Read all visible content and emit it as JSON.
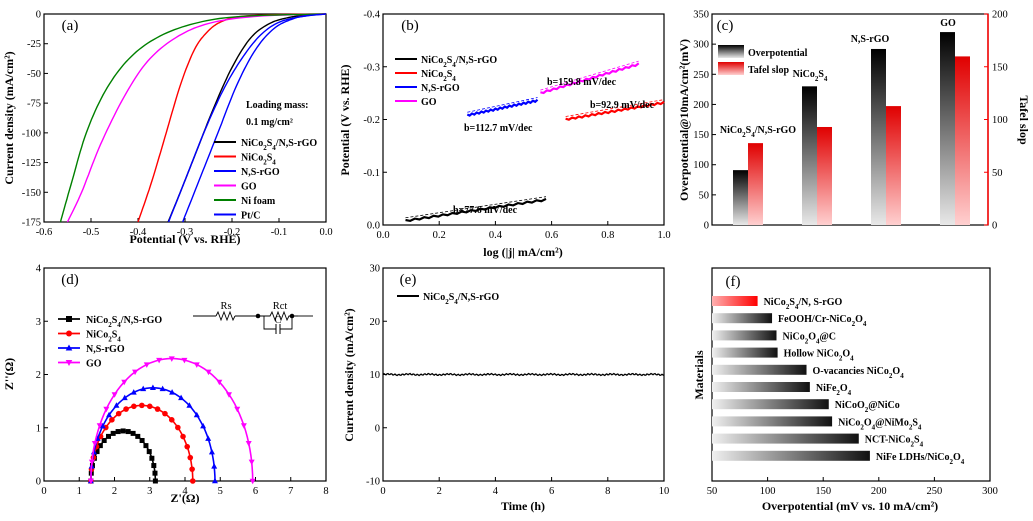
{
  "colors": {
    "black": "#000000",
    "red": "#ff0000",
    "blue": "#0000ff",
    "magenta": "#ff00ff",
    "green": "#008000",
    "gray": "#888888"
  },
  "chart_data": [
    {
      "panel": "(a)",
      "type": "line",
      "xlabel": "Potential (V vs. RHE)",
      "ylabel": "Current density (mA/cm²)",
      "xlim": [
        -0.6,
        0.0
      ],
      "ylim": [
        -175,
        0
      ],
      "xticks": [
        "-0.6",
        "-0.5",
        "-0.4",
        "-0.3",
        "-0.2",
        "-0.1",
        "0.0"
      ],
      "yticks": [
        "0",
        "-25",
        "-50",
        "-75",
        "-100",
        "-125",
        "-150",
        "-175"
      ],
      "annotation": [
        "Loading mass:",
        "0.1 mg/cm²"
      ],
      "series": [
        {
          "name": "NiCo₂S₄/N,S-rGO",
          "color": "#000000",
          "points": [
            [
              -0.336,
              -175
            ],
            [
              -0.31,
              -150
            ],
            [
              -0.28,
              -120
            ],
            [
              -0.24,
              -80
            ],
            [
              -0.2,
              -45
            ],
            [
              -0.16,
              -20
            ],
            [
              -0.12,
              -8
            ],
            [
              -0.08,
              -3
            ],
            [
              -0.04,
              -1
            ],
            [
              0.0,
              0
            ]
          ]
        },
        {
          "name": "NiCo₂S₄",
          "color": "#ff0000",
          "points": [
            [
              -0.4,
              -175
            ],
            [
              -0.37,
              -140
            ],
            [
              -0.34,
              -100
            ],
            [
              -0.31,
              -60
            ],
            [
              -0.28,
              -30
            ],
            [
              -0.25,
              -14
            ],
            [
              -0.22,
              -6
            ],
            [
              -0.18,
              -2
            ],
            [
              -0.1,
              -0.5
            ],
            [
              0.0,
              0
            ]
          ]
        },
        {
          "name": "N,S-rGO",
          "color": "#0000ff",
          "points": [
            [
              -0.305,
              -175
            ],
            [
              -0.27,
              -140
            ],
            [
              -0.23,
              -100
            ],
            [
              -0.19,
              -60
            ],
            [
              -0.15,
              -30
            ],
            [
              -0.11,
              -12
            ],
            [
              -0.07,
              -4
            ],
            [
              -0.04,
              -1.5
            ],
            [
              0.0,
              0
            ]
          ]
        },
        {
          "name": "GO",
          "color": "#ff00ff",
          "points": [
            [
              -0.55,
              -175
            ],
            [
              -0.52,
              -150
            ],
            [
              -0.48,
              -110
            ],
            [
              -0.43,
              -70
            ],
            [
              -0.38,
              -40
            ],
            [
              -0.32,
              -20
            ],
            [
              -0.25,
              -8
            ],
            [
              -0.15,
              -2
            ],
            [
              0.0,
              0
            ]
          ]
        },
        {
          "name": "Ni foam",
          "color": "#008000",
          "points": [
            [
              -0.565,
              -175
            ],
            [
              -0.54,
              -140
            ],
            [
              -0.51,
              -100
            ],
            [
              -0.47,
              -65
            ],
            [
              -0.42,
              -38
            ],
            [
              -0.36,
              -20
            ],
            [
              -0.28,
              -8
            ],
            [
              -0.18,
              -2
            ],
            [
              0.0,
              0
            ]
          ]
        },
        {
          "name": "Pt/C",
          "color": "#0000ff",
          "points": [
            [
              -0.335,
              -175
            ],
            [
              -0.3,
              -140
            ],
            [
              -0.26,
              -100
            ],
            [
              -0.22,
              -65
            ],
            [
              -0.18,
              -38
            ],
            [
              -0.14,
              -18
            ],
            [
              -0.1,
              -7
            ],
            [
              -0.05,
              -2
            ],
            [
              0.0,
              0
            ]
          ]
        }
      ]
    },
    {
      "panel": "(b)",
      "type": "line",
      "xlabel": "log (|j| mA/cm²)",
      "ylabel": "Potential (V vs. RHE)",
      "xlim": [
        0.0,
        1.0
      ],
      "ylim": [
        0.0,
        -0.4
      ],
      "xticks": [
        "0.0",
        "0.2",
        "0.4",
        "0.6",
        "0.8",
        "1.0"
      ],
      "yticks": [
        "-0.4",
        "-0.3",
        "-0.2",
        "-0.1",
        "0.0"
      ],
      "series": [
        {
          "name": "NiCo₂S₄/N,S-rGO",
          "color": "#000000",
          "x": [
            0.08,
            0.58
          ],
          "y": [
            -0.008,
            -0.048
          ],
          "label": "b=77.6 mV/dec"
        },
        {
          "name": "NiCo₂S₄",
          "color": "#ff0000",
          "x": [
            0.65,
            1.0
          ],
          "y": [
            -0.2,
            -0.232
          ],
          "label": "b=92.9 mV/dec"
        },
        {
          "name": "N,S-rGO",
          "color": "#0000ff",
          "x": [
            0.3,
            0.55
          ],
          "y": [
            -0.208,
            -0.236
          ],
          "label": "b=112.7 mV/dec"
        },
        {
          "name": "GO",
          "color": "#ff00ff",
          "x": [
            0.56,
            0.91
          ],
          "y": [
            -0.25,
            -0.305
          ],
          "label": "b=159.8 mV/dec"
        }
      ]
    },
    {
      "panel": "(c)",
      "type": "bar",
      "categories": [
        "NiCo₂S₄/N,S-rGO",
        "NiCo₂S₄",
        "N,S-rGO",
        "GO"
      ],
      "series": [
        {
          "name": "Overpotential",
          "color": "#000000",
          "values": [
            91,
            230,
            292,
            320
          ],
          "axis": "left"
        },
        {
          "name": "Tafel slop",
          "color": "#ff0000",
          "values": [
            77.6,
            92.9,
            112.7,
            159.8
          ],
          "axis": "right"
        }
      ],
      "ylabel": "Overpotential@10mA/cm²(mV)",
      "ylabel_right": "Tafel slop",
      "ylim": [
        0,
        350
      ],
      "ylim_right": [
        0,
        200
      ],
      "yticks": [
        "0",
        "50",
        "100",
        "150",
        "200",
        "250",
        "300",
        "350"
      ],
      "yticks_right": [
        "0",
        "50",
        "100",
        "150",
        "200"
      ]
    },
    {
      "panel": "(d)",
      "type": "scatter",
      "xlabel": "Z'(Ω)",
      "ylabel": "Z''(Ω)",
      "xlim": [
        0,
        8
      ],
      "ylim": [
        0,
        4
      ],
      "xticks": [
        "0",
        "1",
        "2",
        "3",
        "4",
        "5",
        "6",
        "7",
        "8"
      ],
      "yticks": [
        "0",
        "1",
        "2",
        "3",
        "4"
      ],
      "circuit_labels": [
        "Rs",
        "Rct",
        "C"
      ],
      "series": [
        {
          "name": "NiCo₂S₄/N,S-rGO",
          "color": "#000000",
          "marker": "square",
          "r0": 1.33,
          "r1": 3.16,
          "peak": 0.94
        },
        {
          "name": "NiCo₂S₄",
          "color": "#ff0000",
          "marker": "circle",
          "r0": 1.33,
          "r1": 4.22,
          "peak": 1.42
        },
        {
          "name": "N,S-rGO",
          "color": "#0000ff",
          "marker": "triangle-up",
          "r0": 1.33,
          "r1": 4.85,
          "peak": 1.75
        },
        {
          "name": "GO",
          "color": "#ff00ff",
          "marker": "triangle-down",
          "r0": 1.33,
          "r1": 5.92,
          "peak": 2.3
        }
      ]
    },
    {
      "panel": "(e)",
      "type": "line",
      "xlabel": "Time (h)",
      "ylabel": "Current density (mA/cm²)",
      "xlim": [
        0,
        10
      ],
      "ylim": [
        -10,
        30
      ],
      "xticks": [
        "0",
        "2",
        "4",
        "6",
        "8",
        "10"
      ],
      "yticks": [
        "-10",
        "0",
        "10",
        "20",
        "30"
      ],
      "series": [
        {
          "name": "NiCo₂S₄/N,S-rGO",
          "color": "#000000",
          "x": [
            0,
            10
          ],
          "y": [
            10,
            10
          ]
        }
      ]
    },
    {
      "panel": "(f)",
      "type": "bar",
      "orientation": "horizontal",
      "xlabel": "Overpotential (mV vs. 10 mA/cm²)",
      "ylabel": "Materials",
      "xlim": [
        50,
        300
      ],
      "xticks": [
        "50",
        "100",
        "150",
        "200",
        "250",
        "300"
      ],
      "categories": [
        "NiCo₂S₄/N, S-rGO",
        "FeOOH/Cr-NiCo₂O₄",
        "NiCo₂O₄@C",
        "Hollow NiCo₂O₄",
        "O-vacancies NiCo₂O₄",
        "NiFe₂O₄",
        "NiCoO₂@NiCo",
        "NiCo₂O₄@NiMo₂S₄",
        "NCT-NiCo₂S₄",
        "NiFe LDHs/NiCo₂O₄"
      ],
      "values": [
        91,
        104,
        108,
        109,
        135,
        138,
        155,
        158,
        182,
        192
      ],
      "highlight_color": "#ff0000",
      "bar_color": "#444444"
    }
  ]
}
